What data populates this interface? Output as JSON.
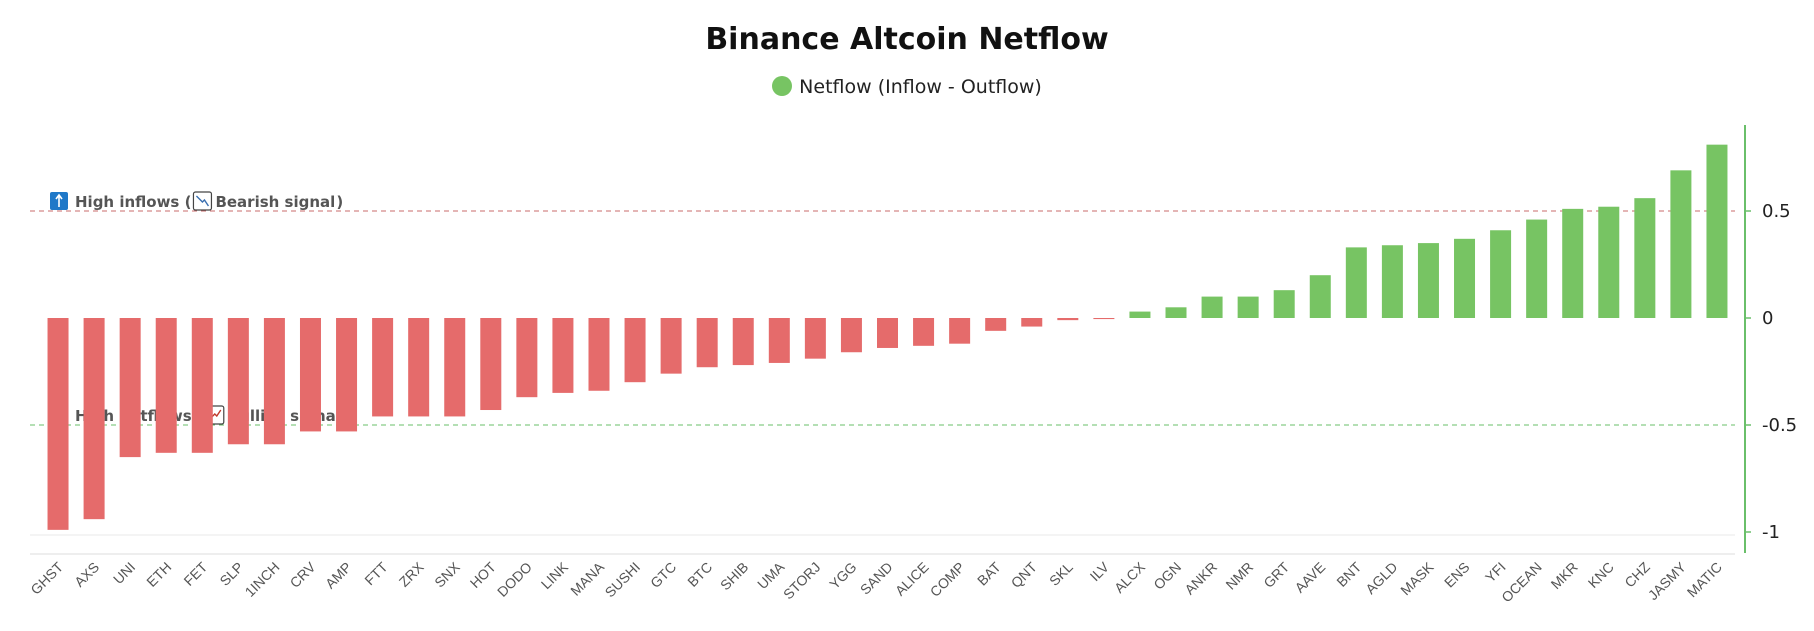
{
  "chart_data": {
    "type": "bar",
    "title": "Binance Altcoin Netflow",
    "legend": {
      "placement": "top-center",
      "entries": [
        "Netflow (Inflow - Outflow)"
      ]
    },
    "series": [
      {
        "name": "Netflow (Inflow - Outflow)",
        "values": [
          -0.99,
          -0.94,
          -0.65,
          -0.63,
          -0.63,
          -0.59,
          -0.59,
          -0.53,
          -0.53,
          -0.46,
          -0.46,
          -0.46,
          -0.43,
          -0.37,
          -0.35,
          -0.34,
          -0.3,
          -0.26,
          -0.23,
          -0.22,
          -0.21,
          -0.19,
          -0.16,
          -0.14,
          -0.13,
          -0.12,
          -0.06,
          -0.04,
          -0.01,
          -0.005,
          0.03,
          0.05,
          0.1,
          0.1,
          0.13,
          0.2,
          0.33,
          0.34,
          0.35,
          0.37,
          0.41,
          0.46,
          0.51,
          0.52,
          0.56,
          0.69,
          0.81
        ]
      }
    ],
    "categories": [
      "GHST",
      "AXS",
      "UNI",
      "ETH",
      "FET",
      "SLP",
      "1INCH",
      "CRV",
      "AMP",
      "FTT",
      "ZRX",
      "SNX",
      "HOT",
      "DODO",
      "LINK",
      "MANA",
      "SUSHI",
      "GTC",
      "BTC",
      "SHIB",
      "UMA",
      "STORJ",
      "YGG",
      "SAND",
      "ALICE",
      "COMP",
      "BAT",
      "QNT",
      "SKL",
      "ILV",
      "ALCX",
      "OGN",
      "ANKR",
      "NMR",
      "GRT",
      "AAVE",
      "BNT",
      "AGLD",
      "MASK",
      "ENS",
      "YFI",
      "OCEAN",
      "MKR",
      "KNC",
      "CHZ",
      "JASMY",
      "MATIC"
    ],
    "y_axis": {
      "position": "right",
      "ticks": [
        0.5,
        0,
        -0.5,
        -1
      ],
      "tick_labels": [
        "0.5",
        "0",
        "-0.5",
        "-1"
      ],
      "ylim": [
        -1.1,
        0.9
      ]
    },
    "grid": false,
    "reference_lines": [
      {
        "value": 0.5,
        "color": "#c96b6b",
        "style": "dashed",
        "label_parts": [
          "High inflows (",
          "Bearish signal",
          ")"
        ]
      },
      {
        "value": -0.5,
        "color": "#6abf6a",
        "style": "dashed",
        "label_parts": [
          "High outflows (",
          "Bullish signal",
          ")"
        ]
      }
    ],
    "colors": {
      "negative": "#e56b6b",
      "positive": "#77c463",
      "axis": "#6abf6a",
      "legend_dot": "#77c463"
    }
  }
}
